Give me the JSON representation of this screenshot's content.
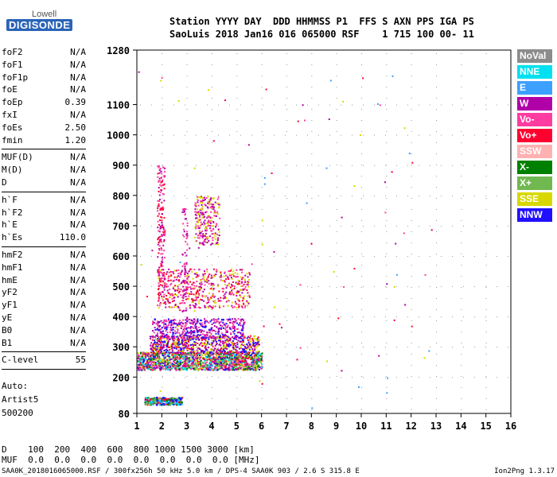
{
  "logo": {
    "line1": "Lowell",
    "line2": "DIGISONDE"
  },
  "header": {
    "line1": "Station YYYY DAY  DDD HHMMSS P1  FFS S AXN PPS IGA PS",
    "line2": "SaoLuis 2018 Jan16 016 065000 RSF    1 715 100 00- 11"
  },
  "params_group1": [
    {
      "name": "foF2",
      "value": "N/A"
    },
    {
      "name": "foF1",
      "value": "N/A"
    },
    {
      "name": "foF1p",
      "value": "N/A"
    },
    {
      "name": "foE",
      "value": "N/A"
    },
    {
      "name": "foEp",
      "value": "0.39"
    },
    {
      "name": "fxI",
      "value": "N/A"
    },
    {
      "name": "foEs",
      "value": "2.50"
    },
    {
      "name": "fmin",
      "value": "1.20"
    }
  ],
  "params_group2": [
    {
      "name": "MUF(D)",
      "value": "N/A"
    },
    {
      "name": "M(D)",
      "value": "N/A"
    },
    {
      "name": "D",
      "value": "N/A"
    }
  ],
  "params_group3": [
    {
      "name": "h`F",
      "value": "N/A"
    },
    {
      "name": "h`F2",
      "value": "N/A"
    },
    {
      "name": "h`E",
      "value": "N/A"
    },
    {
      "name": "h`Es",
      "value": "110.0"
    }
  ],
  "params_group4": [
    {
      "name": "hmF2",
      "value": "N/A"
    },
    {
      "name": "hmF1",
      "value": "N/A"
    },
    {
      "name": "hmE",
      "value": "N/A"
    },
    {
      "name": "yF2",
      "value": "N/A"
    },
    {
      "name": "yF1",
      "value": "N/A"
    },
    {
      "name": "yE",
      "value": "N/A"
    },
    {
      "name": "B0",
      "value": "N/A"
    },
    {
      "name": "B1",
      "value": "N/A"
    }
  ],
  "clevel": {
    "name": "C-level",
    "value": "55"
  },
  "auto": {
    "line1": "Auto:",
    "line2": "Artist5",
    "line3": "500200"
  },
  "legend": [
    {
      "label": "NoVal",
      "color": "#8c8c8c"
    },
    {
      "label": "NNE",
      "color": "#00e0f0"
    },
    {
      "label": "E",
      "color": "#3ca0ff"
    },
    {
      "label": "W",
      "color": "#b000a8"
    },
    {
      "label": "Vo-",
      "color": "#ff3ca0"
    },
    {
      "label": "Vo+",
      "color": "#ff0030"
    },
    {
      "label": "SSW",
      "color": "#ffb0b0"
    },
    {
      "label": "X-",
      "color": "#008000"
    },
    {
      "label": "X+",
      "color": "#70b850"
    },
    {
      "label": "SSE",
      "color": "#d8d800"
    },
    {
      "label": "NNW",
      "color": "#2010ff"
    }
  ],
  "footer": {
    "d_line": "D    100  200  400  600  800 1000 1500 3000 [km]",
    "muf_line": "MUF  0.0  0.0  0.0  0.0  0.0  0.0  0.0  0.0 [MHz]",
    "file_line": "SAA0K_2018016065000.RSF / 300fx256h 50 kHz 5.0 km / DPS-4 SAA0K 903 / 2.6 S 315.8 E",
    "version": "Ion2Png 1.3.17"
  },
  "chart_data": {
    "type": "scatter",
    "xlim": [
      1,
      16
    ],
    "ylim": [
      80,
      1280
    ],
    "x_ticks": [
      "1",
      "2",
      "3",
      "4",
      "5",
      "6",
      "7",
      "8",
      "9",
      "10",
      "11",
      "12",
      "13",
      "14",
      "15",
      "16"
    ],
    "y_ticks": [
      "80",
      "200",
      "300",
      "400",
      "500",
      "600",
      "700",
      "800",
      "900",
      "1000",
      "1100",
      "1280"
    ],
    "y_tick_values": [
      80,
      200,
      300,
      400,
      500,
      600,
      700,
      800,
      900,
      1000,
      1100,
      1280
    ],
    "clusters": [
      {
        "x": [
          1.0,
          6.0
        ],
        "y": [
          225,
          285
        ],
        "n": 1600,
        "colors": [
          "#ff0030",
          "#ff3ca0",
          "#b000a8",
          "#2010ff",
          "#d8d800",
          "#70b850",
          "#008000",
          "#00e0f0"
        ]
      },
      {
        "x": [
          1.5,
          5.9
        ],
        "y": [
          280,
          340
        ],
        "n": 700,
        "colors": [
          "#2010ff",
          "#b000a8",
          "#ff0030",
          "#d8d800"
        ]
      },
      {
        "x": [
          1.6,
          5.3
        ],
        "y": [
          330,
          395
        ],
        "n": 450,
        "colors": [
          "#2010ff",
          "#b000a8",
          "#ff3ca0"
        ]
      },
      {
        "x": [
          1.8,
          5.5
        ],
        "y": [
          430,
          560
        ],
        "n": 550,
        "colors": [
          "#ff0030",
          "#d8d800",
          "#ff3ca0",
          "#b000a8"
        ]
      },
      {
        "x": [
          3.3,
          4.3
        ],
        "y": [
          640,
          800
        ],
        "n": 260,
        "colors": [
          "#ff3ca0",
          "#d8d800",
          "#b000a8"
        ]
      },
      {
        "x": [
          1.3,
          2.8
        ],
        "y": [
          110,
          135
        ],
        "n": 320,
        "colors": [
          "#2010ff",
          "#00e0f0",
          "#008000",
          "#70b850",
          "#ff0030"
        ]
      },
      {
        "x": [
          1.8,
          2.1
        ],
        "y": [
          500,
          900
        ],
        "n": 160,
        "colors": [
          "#ff3ca0",
          "#b000a8",
          "#ff0030"
        ]
      },
      {
        "x": [
          2.8,
          3.0
        ],
        "y": [
          280,
          760
        ],
        "n": 90,
        "colors": [
          "#b000a8",
          "#ff3ca0"
        ]
      },
      {
        "x": [
          1.0,
          13.0
        ],
        "y": [
          150,
          1200
        ],
        "n": 70,
        "colors": [
          "#ff0030",
          "#b000a8",
          "#3ca0ff",
          "#d8d800",
          "#ff3ca0"
        ]
      }
    ],
    "points": [
      {
        "x": 11.2,
        "y": 880,
        "color": "#ff0030"
      },
      {
        "x": 6.1,
        "y": 860,
        "color": "#3ca0ff"
      },
      {
        "x": 6.1,
        "y": 840,
        "color": "#3ca0ff"
      },
      {
        "x": 11.4,
        "y": 540,
        "color": "#3ca0ff"
      },
      {
        "x": 11.3,
        "y": 500,
        "color": "#d8d800"
      },
      {
        "x": 11.0,
        "y": 510,
        "color": "#b000a8"
      },
      {
        "x": 11.3,
        "y": 390,
        "color": "#ff0030"
      },
      {
        "x": 12.0,
        "y": 370,
        "color": "#ff0030"
      },
      {
        "x": 11.0,
        "y": 150,
        "color": "#3ca0ff"
      },
      {
        "x": 8.0,
        "y": 100,
        "color": "#3ca0ff"
      },
      {
        "x": 8.6,
        "y": 255,
        "color": "#d8d800"
      },
      {
        "x": 7.4,
        "y": 260,
        "color": "#ff0030"
      },
      {
        "x": 6.0,
        "y": 720,
        "color": "#d8d800"
      },
      {
        "x": 6.0,
        "y": 640,
        "color": "#d8d800"
      },
      {
        "x": 6.0,
        "y": 180,
        "color": "#ff0030"
      },
      {
        "x": 5.9,
        "y": 190,
        "color": "#d8d800"
      },
      {
        "x": 1.05,
        "y": 1210,
        "color": "#b000a8"
      }
    ]
  }
}
